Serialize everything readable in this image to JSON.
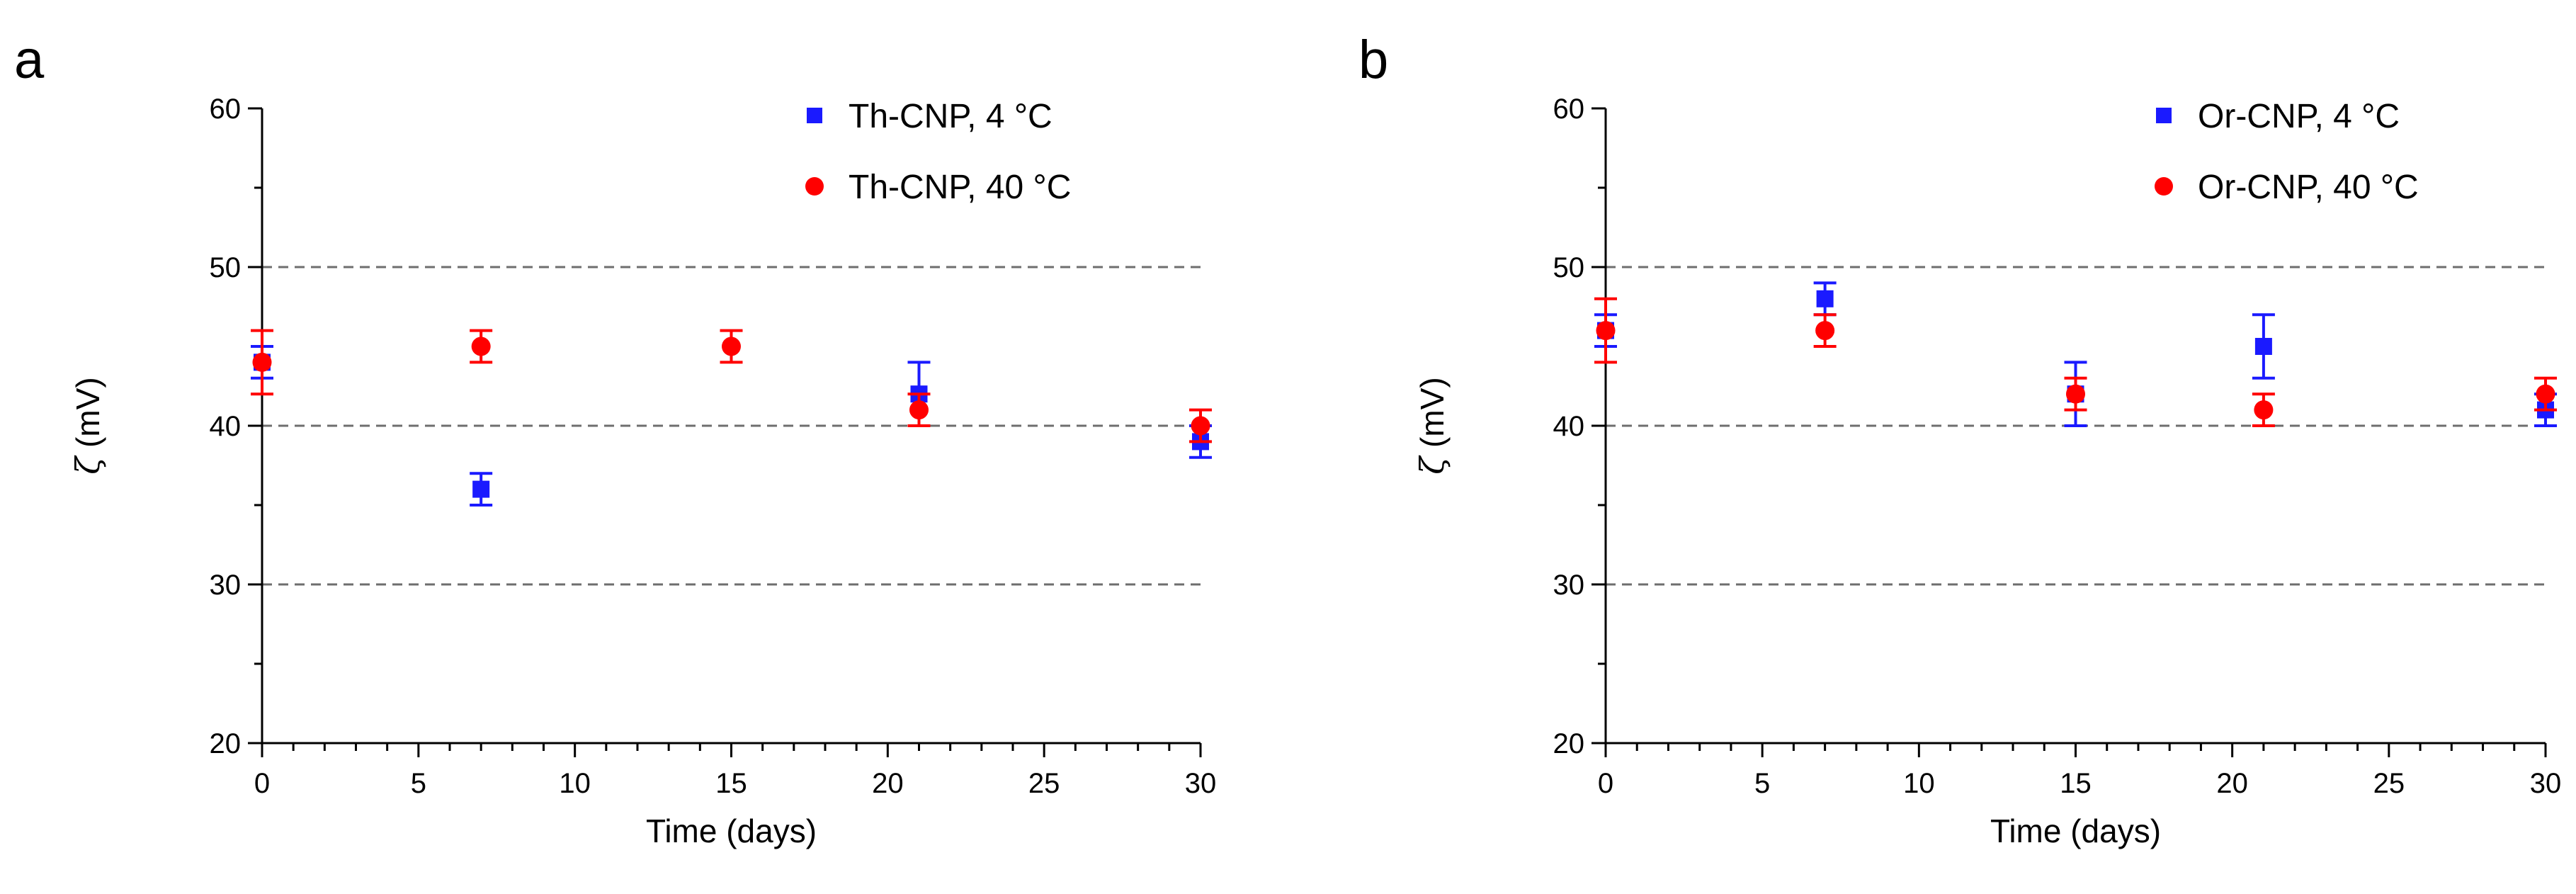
{
  "chart_data": [
    {
      "type": "scatter",
      "panel_label": "a",
      "title": "",
      "xlabel": "Time (days)",
      "ylabel_symbol": "ζ",
      "ylabel_unit": "(mV)",
      "xlim": [
        0,
        30
      ],
      "ylim": [
        20,
        60
      ],
      "x_ticks": [
        "0",
        "5",
        "10",
        "15",
        "20",
        "25",
        "30"
      ],
      "y_ticks": [
        "20",
        "30",
        "40",
        "50",
        "60"
      ],
      "reference_lines": [
        30,
        40,
        50
      ],
      "legend_position": "top-right",
      "series": [
        {
          "name": "Th-CNP, 4 °C",
          "marker": "square",
          "color": "#1a1aff",
          "points": [
            {
              "x": 0,
              "y": 44,
              "err": 1
            },
            {
              "x": 7,
              "y": 36,
              "err": 1
            },
            {
              "x": 21,
              "y": 42,
              "err": 2
            },
            {
              "x": 30,
              "y": 39,
              "err": 1
            }
          ]
        },
        {
          "name": "Th-CNP, 40 °C",
          "marker": "circle",
          "color": "#ff0000",
          "points": [
            {
              "x": 0,
              "y": 44,
              "err": 2
            },
            {
              "x": 7,
              "y": 45,
              "err": 1
            },
            {
              "x": 15,
              "y": 45,
              "err": 1
            },
            {
              "x": 21,
              "y": 41,
              "err": 1
            },
            {
              "x": 30,
              "y": 40,
              "err": 1
            }
          ]
        }
      ]
    },
    {
      "type": "scatter",
      "panel_label": "b",
      "title": "",
      "xlabel": "Time (days)",
      "ylabel_symbol": "ζ",
      "ylabel_unit": "(mV)",
      "xlim": [
        0,
        30
      ],
      "ylim": [
        20,
        60
      ],
      "x_ticks": [
        "0",
        "5",
        "10",
        "15",
        "20",
        "25",
        "30"
      ],
      "y_ticks": [
        "20",
        "30",
        "40",
        "50",
        "60"
      ],
      "reference_lines": [
        30,
        40,
        50
      ],
      "legend_position": "top-right",
      "series": [
        {
          "name": "Or-CNP, 4 °C",
          "marker": "square",
          "color": "#1a1aff",
          "points": [
            {
              "x": 0,
              "y": 46,
              "err": 1
            },
            {
              "x": 7,
              "y": 48,
              "err": 1
            },
            {
              "x": 15,
              "y": 42,
              "err": 2
            },
            {
              "x": 21,
              "y": 45,
              "err": 2
            },
            {
              "x": 30,
              "y": 41,
              "err": 1
            }
          ]
        },
        {
          "name": "Or-CNP, 40 °C",
          "marker": "circle",
          "color": "#ff0000",
          "points": [
            {
              "x": 0,
              "y": 46,
              "err": 2
            },
            {
              "x": 7,
              "y": 46,
              "err": 1
            },
            {
              "x": 15,
              "y": 42,
              "err": 1
            },
            {
              "x": 21,
              "y": 41,
              "err": 1
            },
            {
              "x": 30,
              "y": 42,
              "err": 1
            }
          ]
        }
      ]
    }
  ]
}
